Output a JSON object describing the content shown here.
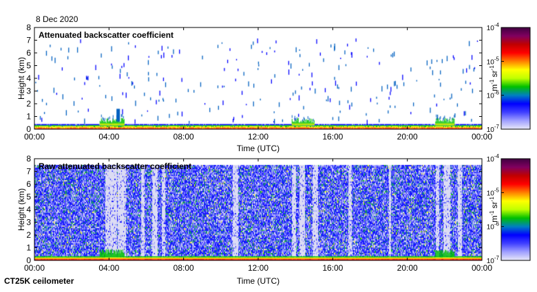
{
  "date": "8 Dec 2020",
  "instrument": "CT25K ceilometer",
  "colors": {
    "colormap": [
      "#d9d9f2",
      "#8080ff",
      "#0000ff",
      "#0060c0",
      "#00c000",
      "#ffff00",
      "#ff8000",
      "#ff0000",
      "#800000",
      "#600060"
    ],
    "frame": "#000000"
  },
  "chart_data": [
    {
      "type": "heatmap",
      "title": "Attenuated backscatter coefficient",
      "xlabel": "Time (UTC)",
      "ylabel": "Height (km)",
      "xlim": [
        "00:00",
        "00:00"
      ],
      "ylim": [
        0,
        8
      ],
      "x_ticks": [
        "00:00",
        "04:00",
        "08:00",
        "12:00",
        "16:00",
        "20:00",
        "00:00"
      ],
      "y_ticks": [
        "0",
        "1",
        "2",
        "3",
        "4",
        "5",
        "6",
        "7",
        "8"
      ],
      "colorbar": {
        "label_top": "m",
        "label_top_exp": "-1",
        "label_mid": " sr",
        "label_mid_exp": "-1",
        "scale": "log",
        "range": [
          1e-07,
          0.0001
        ],
        "ticks": [
          {
            "base": "10",
            "exp": "-4"
          },
          {
            "base": "10",
            "exp": "-5"
          },
          {
            "base": "10",
            "exp": "-6"
          },
          {
            "base": "10",
            "exp": "-7"
          }
        ]
      },
      "features": {
        "surface_layer_km": [
          0,
          0.4
        ],
        "boundary_layer_bursts_hours": [
          [
            3.5,
            4.8
          ],
          [
            13.8,
            15.0
          ],
          [
            21.5,
            22.5
          ]
        ],
        "sparse_returns_km": [
          1,
          7
        ]
      }
    },
    {
      "type": "heatmap",
      "title": "Raw attenuated backscatter coefficient",
      "xlabel": "Time (UTC)",
      "ylabel": "Height (km)",
      "xlim": [
        "00:00",
        "00:00"
      ],
      "ylim": [
        0,
        8
      ],
      "x_ticks": [
        "00:00",
        "04:00",
        "08:00",
        "12:00",
        "16:00",
        "20:00",
        "00:00"
      ],
      "y_ticks": [
        "0",
        "1",
        "2",
        "3",
        "4",
        "5",
        "6",
        "7",
        "8"
      ],
      "colorbar": {
        "label_top": "m",
        "label_top_exp": "-1",
        "label_mid": " sr",
        "label_mid_exp": "-1",
        "scale": "log",
        "range": [
          1e-07,
          0.0001
        ],
        "ticks": [
          {
            "base": "10",
            "exp": "-4"
          },
          {
            "base": "10",
            "exp": "-5"
          },
          {
            "base": "10",
            "exp": "-6"
          },
          {
            "base": "10",
            "exp": "-7"
          }
        ]
      },
      "features": {
        "noise_top_km": 7.5,
        "gap_columns_hours": [
          [
            3.8,
            4.4
          ],
          [
            4.45,
            4.9
          ],
          [
            5.7,
            5.9
          ],
          [
            6.3,
            6.6
          ],
          [
            6.8,
            7.0
          ],
          [
            10.6,
            10.9
          ],
          [
            13.8,
            14.0
          ],
          [
            14.2,
            14.5
          ],
          [
            14.9,
            15.2
          ],
          [
            16.8,
            17.0
          ],
          [
            19.0,
            19.1
          ],
          [
            21.5,
            21.7
          ],
          [
            21.9,
            22.3
          ],
          [
            22.7,
            22.9
          ]
        ]
      }
    }
  ]
}
